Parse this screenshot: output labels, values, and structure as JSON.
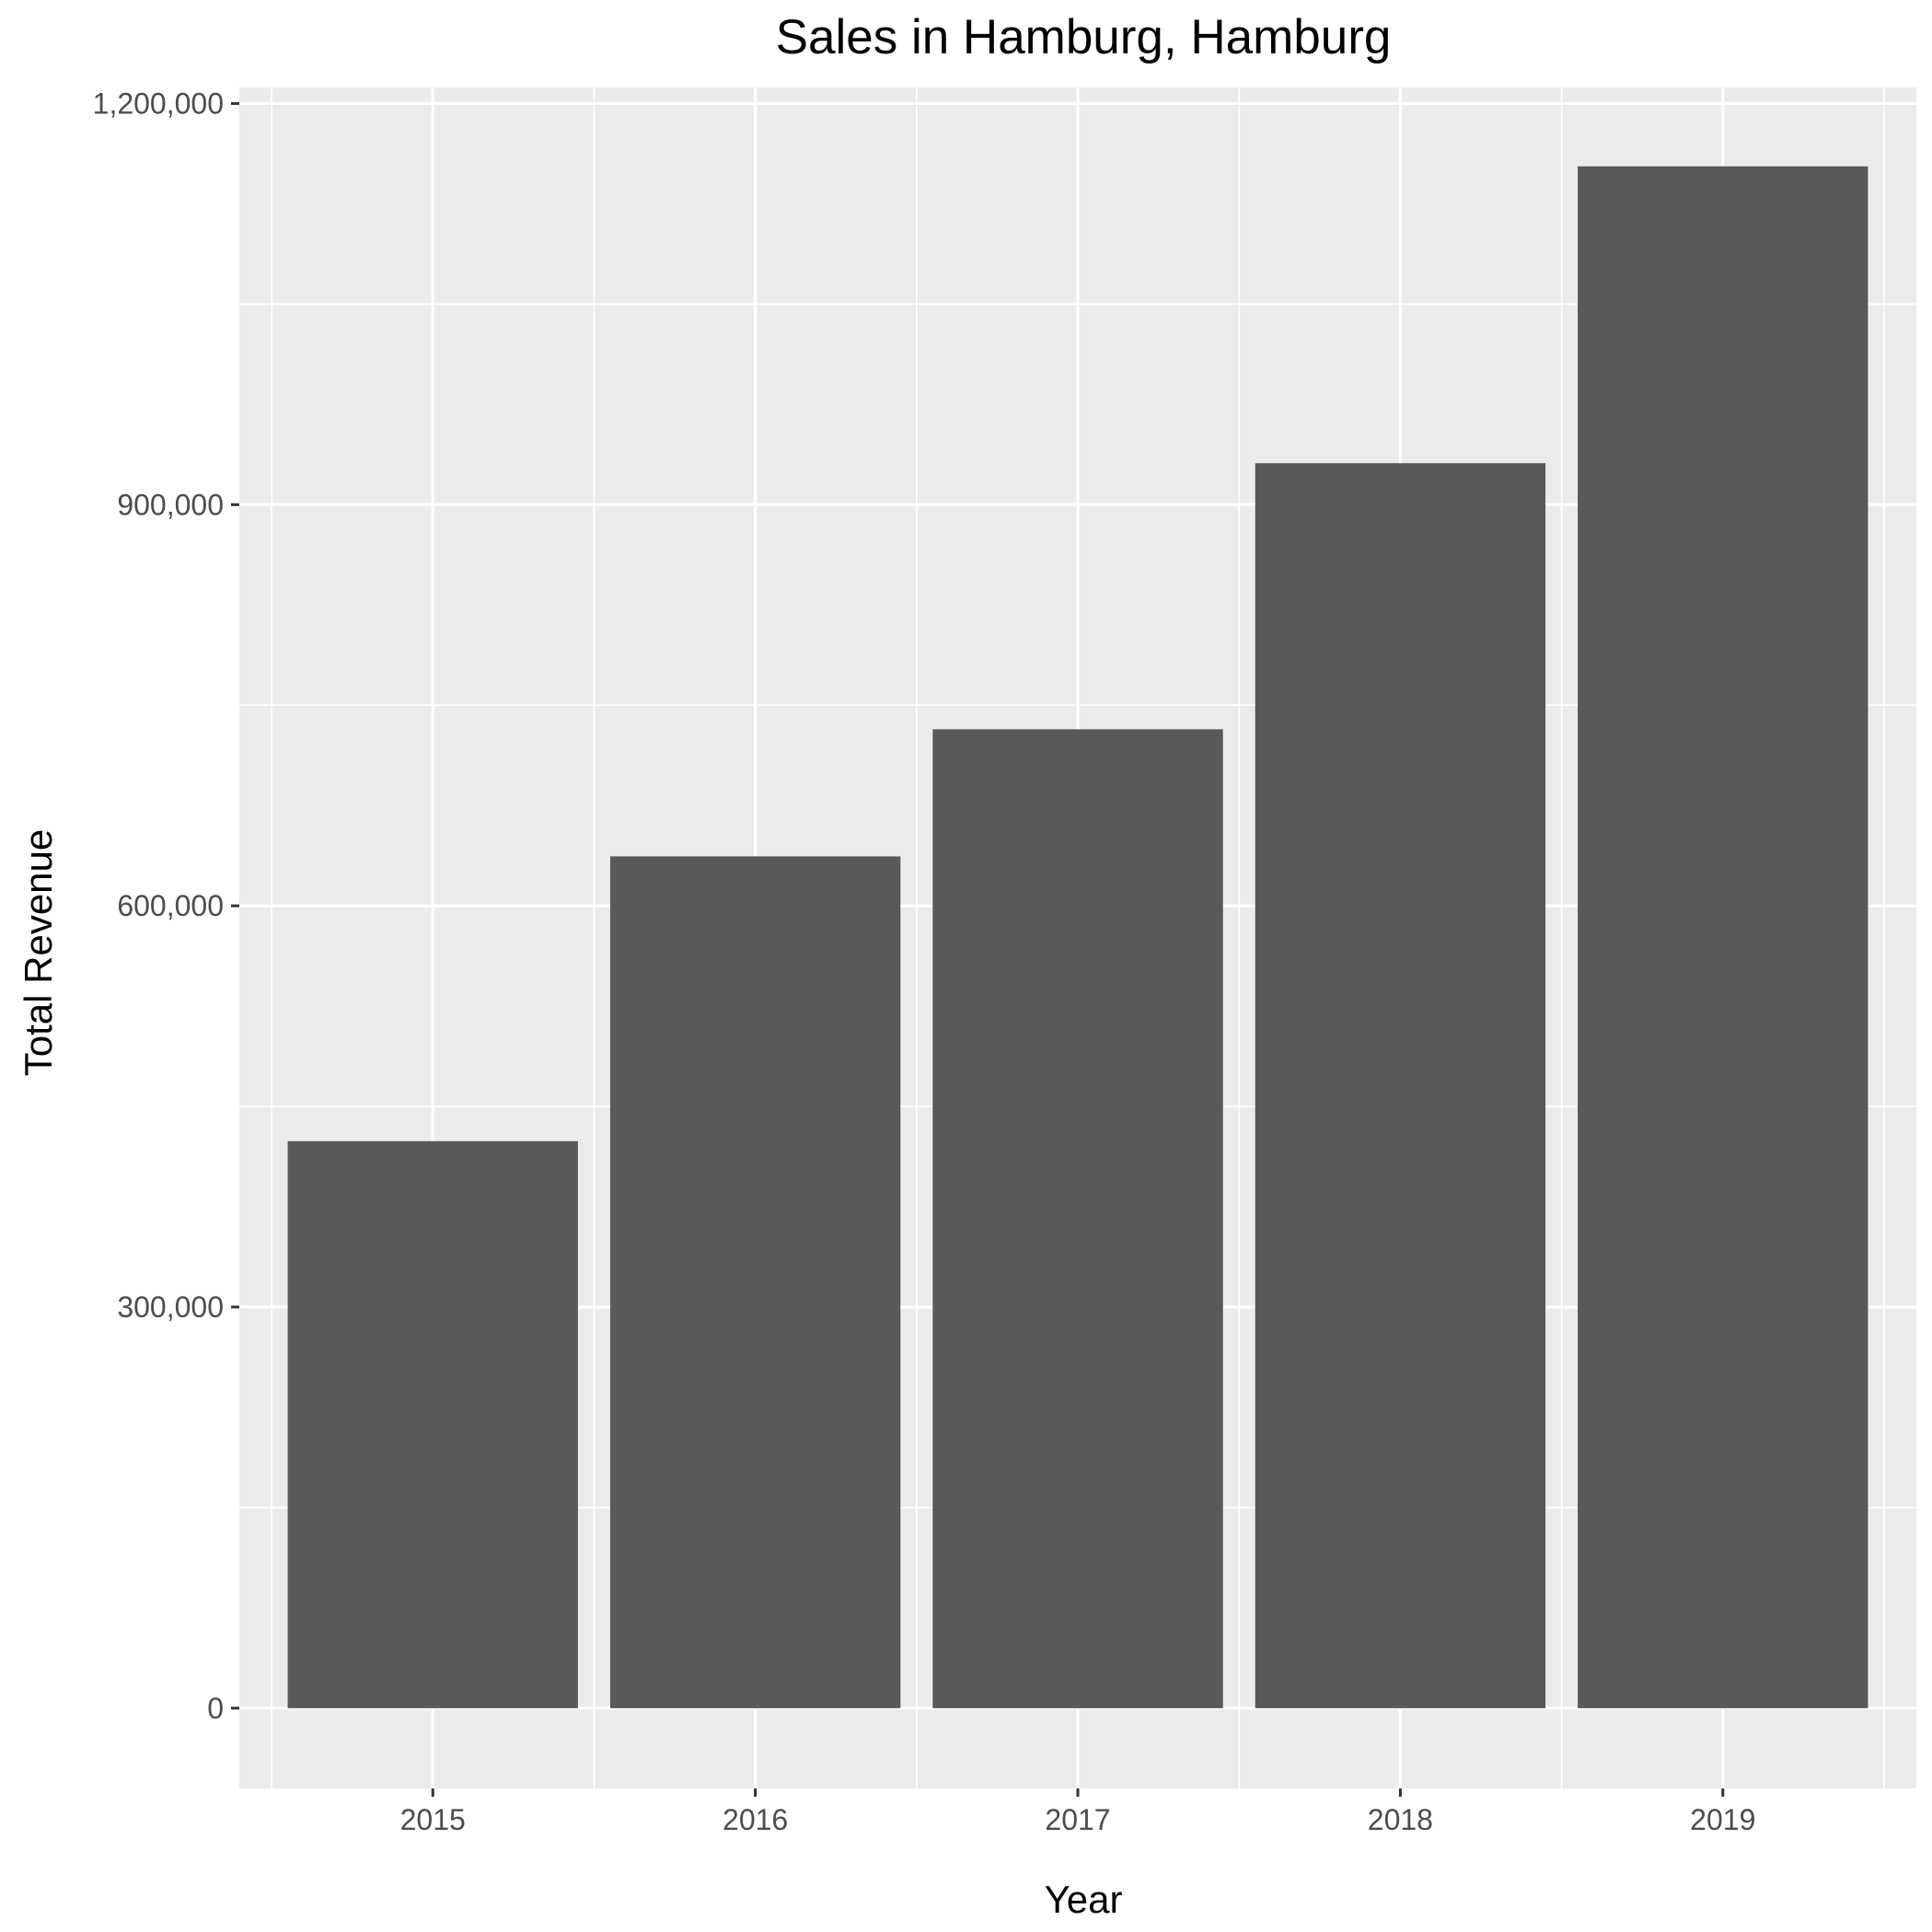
{
  "chart_data": {
    "type": "bar",
    "title": "Sales in Hamburg, Hamburg",
    "xlabel": "Year",
    "ylabel": "Total Revenue",
    "categories": [
      "2015",
      "2016",
      "2017",
      "2018",
      "2019"
    ],
    "values": [
      424000,
      637000,
      732000,
      931000,
      1153000
    ],
    "ylim": [
      -60000,
      1212000
    ],
    "yticks": [
      0,
      300000,
      600000,
      900000,
      1200000
    ],
    "ytick_labels": [
      "0",
      "300,000",
      "600,000",
      "900,000",
      "1,200,000"
    ],
    "grid": true,
    "legend": "none",
    "colors": {
      "bar": "#595959",
      "panel": "#ebebeb",
      "grid": "#ffffff",
      "tick": "#333333"
    }
  }
}
